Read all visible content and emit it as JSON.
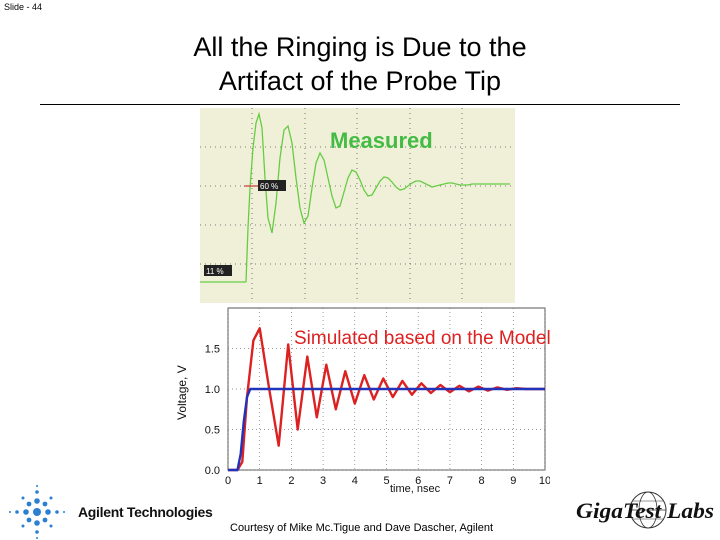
{
  "slide": {
    "label": "Slide - 44"
  },
  "title": {
    "line1": "All the Ringing is Due to the",
    "line2": "Artifact of the Probe Tip"
  },
  "measured": {
    "label": "Measured",
    "marker_high": "60 %",
    "marker_low": "11 %"
  },
  "simulated": {
    "label": "Simulated based on the Model"
  },
  "courtesy": "Courtesy of Mike Mc.Tigue and Dave Dascher, Agilent",
  "agilent": {
    "text": "Agilent Technologies"
  },
  "gigatest": {
    "text": "GigaTest Labs"
  },
  "colors": {
    "measured_trace": "#66cc44",
    "measured_bg": "#f0f0d8",
    "sim_red": "#dd2020",
    "sim_blue": "#2233bb"
  },
  "chart_data": [
    {
      "type": "line",
      "title": "Measured",
      "series": [
        {
          "values": []
        }
      ]
    },
    {
      "type": "line",
      "title": "Simulated based on the Model",
      "xlabel": "time, nsec",
      "ylabel": "Voltage, V",
      "xlim": [
        0,
        10
      ],
      "ylim": [
        0,
        2.0
      ],
      "xticks": [
        0,
        1,
        2,
        3,
        4,
        5,
        6,
        7,
        8,
        9,
        10
      ],
      "yticks": [
        0.0,
        0.5,
        1.0,
        1.5
      ],
      "yticklabels": [
        "0.0",
        "0.5",
        "1.0",
        "1.5"
      ],
      "series": [
        {
          "color": "#dd2020",
          "x": [
            0,
            0.3,
            0.45,
            0.6,
            0.8,
            1.0,
            1.3,
            1.6,
            1.9,
            2.2,
            2.5,
            2.8,
            3.1,
            3.4,
            3.7,
            4.0,
            4.3,
            4.6,
            4.9,
            5.2,
            5.5,
            5.8,
            6.1,
            6.4,
            6.7,
            7.0,
            7.3,
            7.6,
            7.9,
            8.2,
            8.5,
            8.8,
            9.1,
            9.4,
            9.7,
            10
          ],
          "y": [
            0,
            0,
            0.1,
            0.9,
            1.6,
            1.75,
            1.0,
            0.3,
            1.55,
            0.5,
            1.4,
            0.65,
            1.3,
            0.75,
            1.22,
            0.82,
            1.17,
            0.87,
            1.13,
            0.9,
            1.1,
            0.93,
            1.07,
            0.95,
            1.05,
            0.96,
            1.04,
            0.97,
            1.03,
            0.98,
            1.02,
            0.99,
            1.01,
            1.0,
            1.0,
            1.0
          ]
        },
        {
          "color": "#2233bb",
          "x": [
            0,
            0.3,
            0.4,
            0.5,
            0.6,
            0.7,
            10
          ],
          "y": [
            0,
            0,
            0.2,
            0.6,
            0.9,
            1.0,
            1.0
          ]
        }
      ]
    }
  ]
}
